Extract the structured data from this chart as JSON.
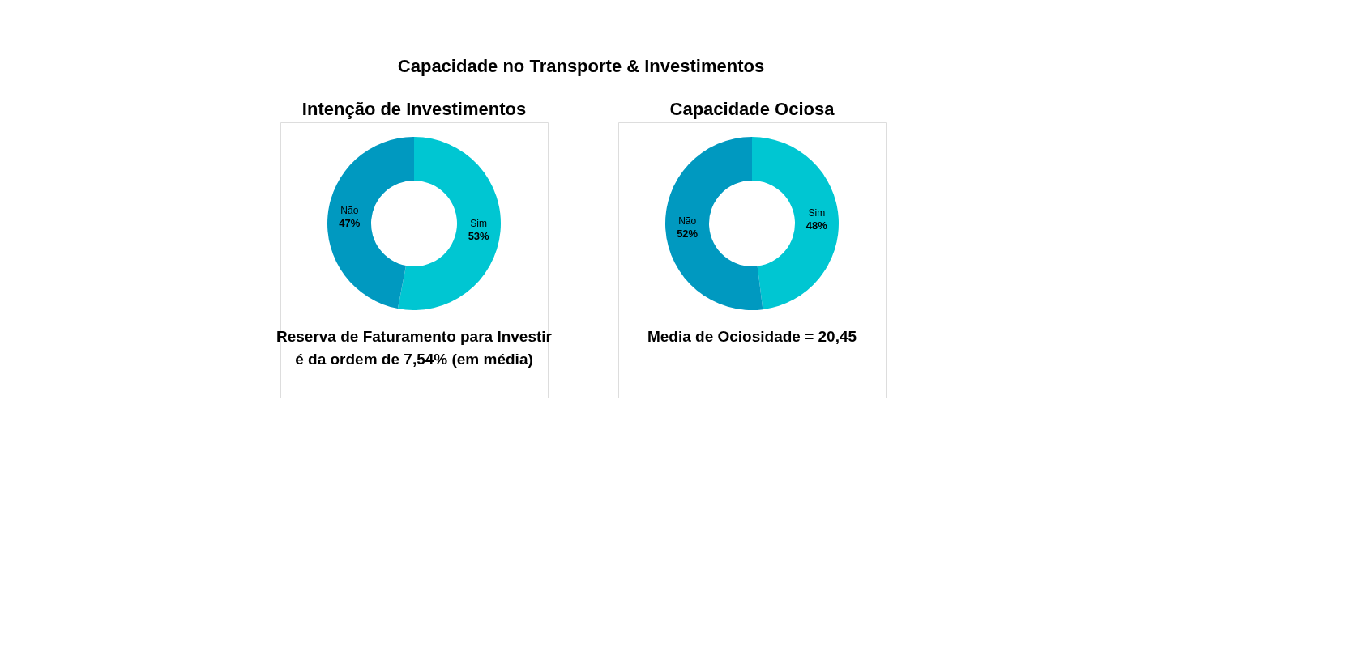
{
  "chart_data": [
    {
      "type": "donut",
      "title": "Intenção de Investimentos",
      "categories": [
        "Sim",
        "Não"
      ],
      "values": [
        53,
        47
      ],
      "colors": [
        "#00c6d2",
        "#0099c0"
      ],
      "value_labels": [
        "53%",
        "47%"
      ],
      "annotations": [
        "Capacidade no Transporte & Investimentos",
        "Reserva de Faturamento para Investir",
        "é da ordem de 7,54% (em média)"
      ]
    },
    {
      "type": "donut",
      "title": "Capacidade Ociosa",
      "categories": [
        "Sim",
        "Não"
      ],
      "values": [
        48,
        52
      ],
      "colors": [
        "#00c6d2",
        "#0099c0"
      ],
      "value_labels": [
        "48%",
        "52%"
      ],
      "annotations": [
        "Media de Ociosidade = 20,45"
      ]
    }
  ]
}
